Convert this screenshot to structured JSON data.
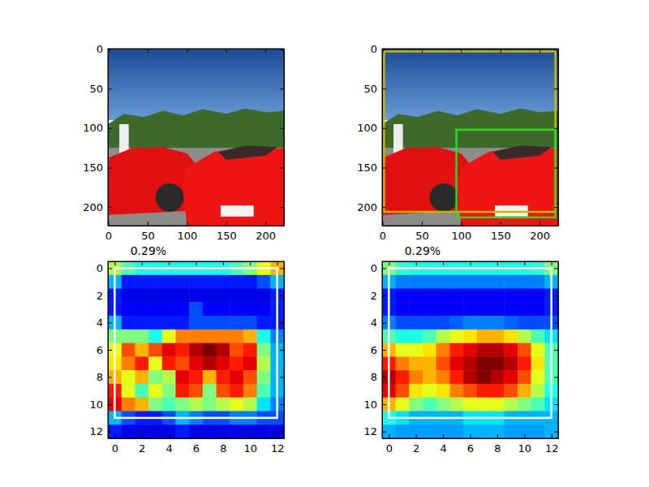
{
  "chart_data": [
    {
      "type": "image",
      "xlim": [
        -0.5,
        223.5
      ],
      "ylim": [
        223.5,
        -0.5
      ],
      "xticks": [
        0,
        50,
        100,
        150,
        200
      ],
      "yticks": [
        0,
        50,
        100,
        150,
        200
      ]
    },
    {
      "type": "image",
      "xlim": [
        -0.5,
        223.5
      ],
      "ylim": [
        223.5,
        -0.5
      ],
      "xticks": [
        0,
        50,
        100,
        150,
        200
      ],
      "yticks": [
        0,
        50,
        100,
        150,
        200
      ],
      "boxes": [
        {
          "x0": 2,
          "y0": 3,
          "x1": 220,
          "y1": 206,
          "color": "#c8b400"
        },
        {
          "x0": 94,
          "y0": 102,
          "x1": 220,
          "y1": 213,
          "color": "#22dd22"
        }
      ]
    },
    {
      "type": "heatmap",
      "title": "0.29%",
      "xlim": [
        -0.5,
        12.5
      ],
      "ylim": [
        12.5,
        -0.5
      ],
      "xticks": [
        0,
        2,
        4,
        6,
        8,
        10,
        12
      ],
      "yticks": [
        0,
        2,
        4,
        6,
        8,
        10,
        12
      ],
      "zlim": [
        0,
        1
      ],
      "cells": [
        [
          0.55,
          0.45,
          0.4,
          0.4,
          0.4,
          0.4,
          0.4,
          0.4,
          0.4,
          0.45,
          0.5,
          0.6,
          0.7
        ],
        [
          0.3,
          0.15,
          0.15,
          0.15,
          0.15,
          0.15,
          0.15,
          0.15,
          0.15,
          0.15,
          0.15,
          0.2,
          0.3
        ],
        [
          0.15,
          0.1,
          0.1,
          0.1,
          0.1,
          0.1,
          0.1,
          0.1,
          0.1,
          0.1,
          0.1,
          0.1,
          0.15
        ],
        [
          0.15,
          0.12,
          0.12,
          0.12,
          0.12,
          0.12,
          0.2,
          0.12,
          0.12,
          0.12,
          0.12,
          0.12,
          0.15
        ],
        [
          0.3,
          0.15,
          0.15,
          0.15,
          0.15,
          0.15,
          0.2,
          0.2,
          0.2,
          0.2,
          0.2,
          0.15,
          0.15
        ],
        [
          0.5,
          0.5,
          0.5,
          0.4,
          0.6,
          0.75,
          0.75,
          0.75,
          0.75,
          0.75,
          0.7,
          0.4,
          0.25
        ],
        [
          0.6,
          0.8,
          0.7,
          0.8,
          0.9,
          0.85,
          0.95,
          1.0,
          0.95,
          0.8,
          0.85,
          0.5,
          0.3
        ],
        [
          0.65,
          0.75,
          0.85,
          0.6,
          0.85,
          0.8,
          0.9,
          0.95,
          0.9,
          0.85,
          0.9,
          0.55,
          0.3
        ],
        [
          0.7,
          0.6,
          0.7,
          0.5,
          0.55,
          0.9,
          0.85,
          0.7,
          0.85,
          0.9,
          0.8,
          0.5,
          0.3
        ],
        [
          0.85,
          0.6,
          0.45,
          0.6,
          0.5,
          0.85,
          0.8,
          0.5,
          0.8,
          0.85,
          0.75,
          0.45,
          0.3
        ],
        [
          0.9,
          0.75,
          0.7,
          0.5,
          0.45,
          0.5,
          0.55,
          0.5,
          0.55,
          0.6,
          0.55,
          0.35,
          0.25
        ],
        [
          0.3,
          0.2,
          0.15,
          0.15,
          0.2,
          0.3,
          0.25,
          0.2,
          0.2,
          0.25,
          0.25,
          0.2,
          0.2
        ],
        [
          0.15,
          0.1,
          0.1,
          0.1,
          0.1,
          0.15,
          0.1,
          0.1,
          0.1,
          0.1,
          0.1,
          0.1,
          0.1
        ]
      ],
      "boxes": [
        {
          "x0": 0,
          "y0": 0,
          "x1": 12,
          "y1": 11,
          "color": "#ffffff"
        }
      ]
    },
    {
      "type": "heatmap",
      "title": "0.29%",
      "xlim": [
        -0.5,
        12.5
      ],
      "ylim": [
        12.5,
        -0.5
      ],
      "xticks": [
        0,
        2,
        4,
        6,
        8,
        10,
        12
      ],
      "yticks": [
        0,
        2,
        4,
        6,
        8,
        10,
        12
      ],
      "zlim": [
        0,
        1
      ],
      "cells": [
        [
          0.5,
          0.42,
          0.4,
          0.4,
          0.4,
          0.4,
          0.4,
          0.4,
          0.4,
          0.4,
          0.4,
          0.42,
          0.5
        ],
        [
          0.3,
          0.25,
          0.25,
          0.25,
          0.25,
          0.25,
          0.25,
          0.25,
          0.25,
          0.25,
          0.25,
          0.25,
          0.3
        ],
        [
          0.15,
          0.12,
          0.12,
          0.12,
          0.12,
          0.12,
          0.12,
          0.12,
          0.12,
          0.12,
          0.12,
          0.12,
          0.15
        ],
        [
          0.15,
          0.12,
          0.12,
          0.12,
          0.12,
          0.12,
          0.12,
          0.12,
          0.12,
          0.12,
          0.12,
          0.12,
          0.15
        ],
        [
          0.25,
          0.2,
          0.2,
          0.2,
          0.2,
          0.22,
          0.25,
          0.25,
          0.25,
          0.22,
          0.2,
          0.2,
          0.2
        ],
        [
          0.45,
          0.4,
          0.4,
          0.45,
          0.55,
          0.6,
          0.65,
          0.7,
          0.7,
          0.65,
          0.55,
          0.45,
          0.35
        ],
        [
          0.7,
          0.6,
          0.6,
          0.65,
          0.75,
          0.85,
          0.9,
          0.95,
          0.95,
          0.9,
          0.8,
          0.6,
          0.45
        ],
        [
          0.85,
          0.75,
          0.7,
          0.7,
          0.8,
          0.9,
          0.95,
          1.0,
          1.0,
          0.95,
          0.85,
          0.65,
          0.45
        ],
        [
          0.95,
          0.85,
          0.75,
          0.7,
          0.75,
          0.85,
          0.95,
          1.0,
          0.95,
          0.9,
          0.8,
          0.6,
          0.45
        ],
        [
          0.9,
          0.8,
          0.65,
          0.6,
          0.65,
          0.75,
          0.8,
          0.85,
          0.85,
          0.8,
          0.7,
          0.55,
          0.4
        ],
        [
          0.7,
          0.6,
          0.5,
          0.45,
          0.5,
          0.55,
          0.6,
          0.6,
          0.6,
          0.55,
          0.5,
          0.45,
          0.35
        ],
        [
          0.4,
          0.35,
          0.3,
          0.3,
          0.3,
          0.3,
          0.35,
          0.35,
          0.35,
          0.3,
          0.3,
          0.3,
          0.3
        ],
        [
          0.3,
          0.28,
          0.28,
          0.28,
          0.28,
          0.28,
          0.3,
          0.3,
          0.3,
          0.28,
          0.28,
          0.28,
          0.3
        ]
      ],
      "boxes": [
        {
          "x0": 0,
          "y0": 0,
          "x1": 12,
          "y1": 11,
          "color": "#ffffff"
        }
      ]
    }
  ]
}
